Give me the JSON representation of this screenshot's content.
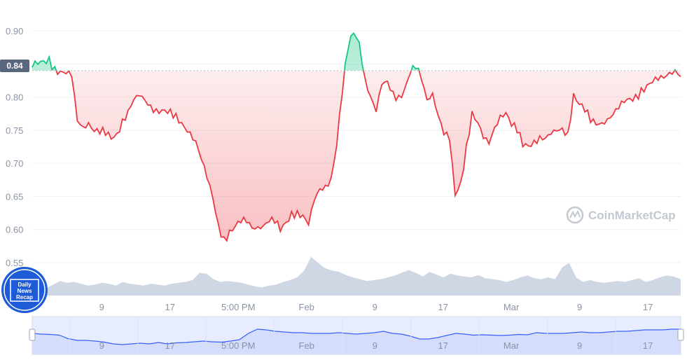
{
  "chart_data": {
    "type": "area",
    "ylim": [
      0.55,
      0.915
    ],
    "y_ticks": [
      "0.90",
      "0.85",
      "0.80",
      "0.75",
      "0.70",
      "0.65",
      "0.60",
      "0.55"
    ],
    "y_tick_values": [
      0.9,
      0.85,
      0.8,
      0.75,
      0.7,
      0.65,
      0.6,
      0.55
    ],
    "x_ticks": [
      "9",
      "17",
      "5:00 PM",
      "Feb",
      "9",
      "17",
      "Mar",
      "9",
      "17"
    ],
    "x_tick_index": [
      7,
      15,
      23,
      31,
      39,
      47,
      55,
      63,
      71
    ],
    "reference_value": 0.84,
    "reference_label": "0.84",
    "price_series": [
      0.845,
      0.848,
      0.852,
      0.857,
      0.842,
      0.836,
      0.833,
      0.83,
      0.765,
      0.758,
      0.765,
      0.752,
      0.748,
      0.745,
      0.738,
      0.745,
      0.765,
      0.777,
      0.792,
      0.798,
      0.792,
      0.786,
      0.782,
      0.782,
      0.778,
      0.772,
      0.765,
      0.758,
      0.75,
      0.735,
      0.705,
      0.675,
      0.645,
      0.605,
      0.585,
      0.596,
      0.603,
      0.61,
      0.612,
      0.605,
      0.608,
      0.61,
      0.615,
      0.612,
      0.598,
      0.61,
      0.625,
      0.625,
      0.618,
      0.603,
      0.64,
      0.66,
      0.667,
      0.68,
      0.73,
      0.81,
      0.875,
      0.9,
      0.885,
      0.83,
      0.8,
      0.775,
      0.815,
      0.82,
      0.805,
      0.8,
      0.81,
      0.835,
      0.845,
      0.83,
      0.8,
      0.81,
      0.775,
      0.745,
      0.735,
      0.65,
      0.67,
      0.725,
      0.775,
      0.758,
      0.735,
      0.728,
      0.755,
      0.775,
      0.78,
      0.76,
      0.75,
      0.728,
      0.728,
      0.735,
      0.74,
      0.735,
      0.74,
      0.745,
      0.75,
      0.745,
      0.805,
      0.79,
      0.78,
      0.765,
      0.762,
      0.765,
      0.77,
      0.775,
      0.782,
      0.79,
      0.795,
      0.8,
      0.81,
      0.815,
      0.82,
      0.825,
      0.83,
      0.84,
      0.845,
      0.835
    ],
    "volume_series": [
      0.18,
      0.2,
      0.16,
      0.24,
      0.32,
      0.28,
      0.3,
      0.26,
      0.22,
      0.24,
      0.28,
      0.26,
      0.22,
      0.3,
      0.26,
      0.24,
      0.22,
      0.26,
      0.24,
      0.22,
      0.26,
      0.28,
      0.3,
      0.34,
      0.5,
      0.48,
      0.36,
      0.3,
      0.32,
      0.3,
      0.28,
      0.24,
      0.2,
      0.18,
      0.22,
      0.24,
      0.3,
      0.34,
      0.4,
      0.55,
      0.85,
      0.72,
      0.6,
      0.55,
      0.52,
      0.45,
      0.4,
      0.36,
      0.32,
      0.34,
      0.36,
      0.4,
      0.44,
      0.5,
      0.56,
      0.5,
      0.42,
      0.52,
      0.46,
      0.4,
      0.48,
      0.44,
      0.42,
      0.4,
      0.45,
      0.38,
      0.36,
      0.34,
      0.3,
      0.34,
      0.4,
      0.44,
      0.38,
      0.36,
      0.4,
      0.36,
      0.62,
      0.72,
      0.4,
      0.3,
      0.34,
      0.3,
      0.28,
      0.3,
      0.32,
      0.3,
      0.34,
      0.38,
      0.3,
      0.34,
      0.4,
      0.44,
      0.42,
      0.36
    ],
    "navigator_series": [
      0.6,
      0.58,
      0.57,
      0.55,
      0.45,
      0.4,
      0.4,
      0.38,
      0.35,
      0.3,
      0.28,
      0.3,
      0.32,
      0.3,
      0.34,
      0.3,
      0.33,
      0.34,
      0.36,
      0.38,
      0.36,
      0.35,
      0.38,
      0.42,
      0.6,
      0.72,
      0.7,
      0.66,
      0.64,
      0.62,
      0.62,
      0.6,
      0.6,
      0.6,
      0.62,
      0.6,
      0.58,
      0.6,
      0.62,
      0.66,
      0.6,
      0.58,
      0.52,
      0.44,
      0.44,
      0.48,
      0.54,
      0.6,
      0.58,
      0.55,
      0.56,
      0.55,
      0.54,
      0.55,
      0.57,
      0.56,
      0.62,
      0.6,
      0.6,
      0.6,
      0.62,
      0.64,
      0.62,
      0.62,
      0.64,
      0.66,
      0.66,
      0.68,
      0.7,
      0.7,
      0.7,
      0.72,
      0.72
    ],
    "colors": {
      "above": "#16c784",
      "below": "#ea3943",
      "grid": "#eff2f5",
      "volume": "#cfd6e4",
      "navigator_fill": "#e7ecff",
      "navigator_line": "#3861fb"
    }
  },
  "watermark": "CoinMarketCap",
  "logo_lines": [
    "Daily",
    "News",
    "Recap"
  ]
}
